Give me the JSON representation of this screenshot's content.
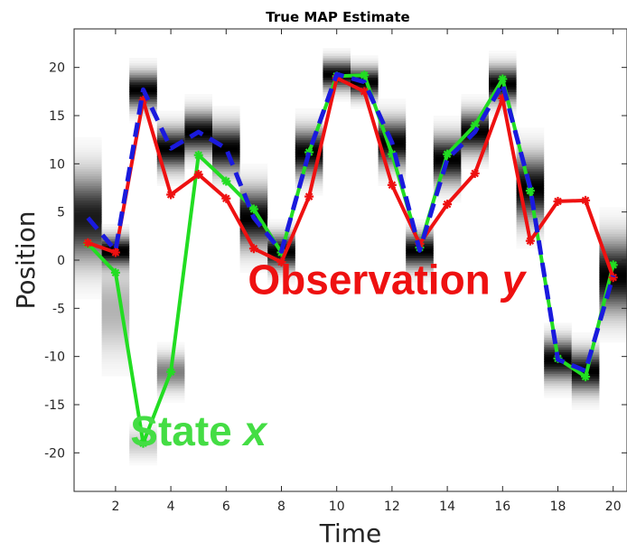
{
  "chart_data": {
    "type": "line",
    "title": "True MAP Estimate",
    "xlabel": "Time",
    "ylabel": "Position",
    "xlim": [
      0.5,
      20.5
    ],
    "ylim": [
      -24,
      24
    ],
    "xticks": [
      2,
      4,
      6,
      8,
      10,
      12,
      14,
      16,
      18,
      20
    ],
    "xtick_labels": [
      "2",
      "4",
      "6",
      "8",
      "10",
      "12",
      "14",
      "16",
      "18",
      "20"
    ],
    "yticks": [
      20,
      15,
      10,
      5,
      0,
      -5,
      -10,
      -15,
      -20
    ],
    "ytick_labels": [
      "20",
      "15",
      "10",
      "5",
      "0",
      "-5",
      "-10",
      "-15",
      "-20"
    ],
    "grid": false,
    "x": [
      1,
      2,
      3,
      4,
      5,
      6,
      7,
      8,
      9,
      10,
      11,
      12,
      13,
      14,
      15,
      16,
      17,
      18,
      19,
      20
    ],
    "series": [
      {
        "key": "observation",
        "color": "#ee1111",
        "style": "solid-star",
        "values": [
          1.8,
          0.8,
          16.6,
          6.8,
          8.9,
          6.4,
          1.2,
          -0.2,
          6.6,
          18.9,
          17.5,
          7.8,
          1.7,
          5.8,
          9.0,
          16.8,
          2.0,
          6.1,
          6.2,
          -1.8
        ]
      },
      {
        "key": "state",
        "color": "#22dd22",
        "style": "solid-star",
        "values": [
          1.7,
          -1.3,
          -19.0,
          -11.6,
          10.9,
          8.2,
          5.3,
          0.8,
          11.2,
          19.1,
          19.2,
          11.0,
          1.3,
          11.0,
          14.0,
          18.8,
          7.2,
          -10.2,
          -12.1,
          -0.5
        ]
      },
      {
        "key": "map_estimate",
        "color": "#1a1add",
        "style": "dashed",
        "values": [
          4.4,
          1.0,
          17.7,
          11.6,
          13.3,
          11.6,
          4.4,
          0.9,
          11.2,
          19.3,
          18.5,
          12.2,
          1.0,
          10.5,
          13.3,
          18.3,
          7.5,
          -10.3,
          -11.5,
          -1.6
        ]
      }
    ],
    "belief": {
      "colormap": "white-to-black",
      "columns": [
        {
          "x": 1,
          "peaks": [
            {
              "y": 4.4,
              "spread": 3.0,
              "strength": 0.9
            }
          ]
        },
        {
          "x": 2,
          "peaks": [
            {
              "y": 1.0,
              "spread": 1.0,
              "strength": 1.0
            },
            {
              "y": -5.0,
              "spread": 3.0,
              "strength": 0.3
            }
          ]
        },
        {
          "x": 3,
          "peaks": [
            {
              "y": 17.7,
              "spread": 1.2,
              "strength": 1.0
            },
            {
              "y": -19.0,
              "spread": 1.0,
              "strength": 0.2
            }
          ]
        },
        {
          "x": 4,
          "peaks": [
            {
              "y": 11.6,
              "spread": 1.4,
              "strength": 1.0
            },
            {
              "y": -11.6,
              "spread": 1.2,
              "strength": 0.5
            }
          ]
        },
        {
          "x": 5,
          "peaks": [
            {
              "y": 13.3,
              "spread": 1.4,
              "strength": 1.0
            }
          ]
        },
        {
          "x": 6,
          "peaks": [
            {
              "y": 11.6,
              "spread": 1.6,
              "strength": 1.0
            }
          ]
        },
        {
          "x": 7,
          "peaks": [
            {
              "y": 4.4,
              "spread": 2.0,
              "strength": 1.0
            }
          ]
        },
        {
          "x": 8,
          "peaks": [
            {
              "y": 0.9,
              "spread": 1.2,
              "strength": 1.0
            }
          ]
        },
        {
          "x": 9,
          "peaks": [
            {
              "y": 11.2,
              "spread": 1.6,
              "strength": 1.0
            }
          ]
        },
        {
          "x": 10,
          "peaks": [
            {
              "y": 19.3,
              "spread": 1.0,
              "strength": 1.0
            }
          ]
        },
        {
          "x": 11,
          "peaks": [
            {
              "y": 18.5,
              "spread": 1.0,
              "strength": 1.0
            }
          ]
        },
        {
          "x": 12,
          "peaks": [
            {
              "y": 12.2,
              "spread": 1.6,
              "strength": 1.0
            }
          ]
        },
        {
          "x": 13,
          "peaks": [
            {
              "y": 1.0,
              "spread": 1.2,
              "strength": 1.0
            }
          ]
        },
        {
          "x": 14,
          "peaks": [
            {
              "y": 10.5,
              "spread": 1.6,
              "strength": 1.0
            }
          ]
        },
        {
          "x": 15,
          "peaks": [
            {
              "y": 13.3,
              "spread": 1.4,
              "strength": 1.0
            }
          ]
        },
        {
          "x": 16,
          "peaks": [
            {
              "y": 18.3,
              "spread": 1.2,
              "strength": 1.0
            }
          ]
        },
        {
          "x": 17,
          "peaks": [
            {
              "y": 7.5,
              "spread": 2.2,
              "strength": 1.0
            }
          ]
        },
        {
          "x": 18,
          "peaks": [
            {
              "y": -10.3,
              "spread": 1.4,
              "strength": 1.0
            }
          ]
        },
        {
          "x": 19,
          "peaks": [
            {
              "y": -11.5,
              "spread": 1.4,
              "strength": 1.0
            }
          ]
        },
        {
          "x": 20,
          "peaks": [
            {
              "y": -1.6,
              "spread": 2.5,
              "strength": 1.0
            }
          ]
        }
      ]
    },
    "annotations": [
      {
        "key": "obs",
        "text": "Observation ",
        "var": "y",
        "color": "#ee1111",
        "x": 11.8,
        "y": -3.5
      },
      {
        "key": "state",
        "text": "State ",
        "var": "x",
        "color": "#44dd44",
        "x": 5.0,
        "y": -19.2
      }
    ]
  }
}
